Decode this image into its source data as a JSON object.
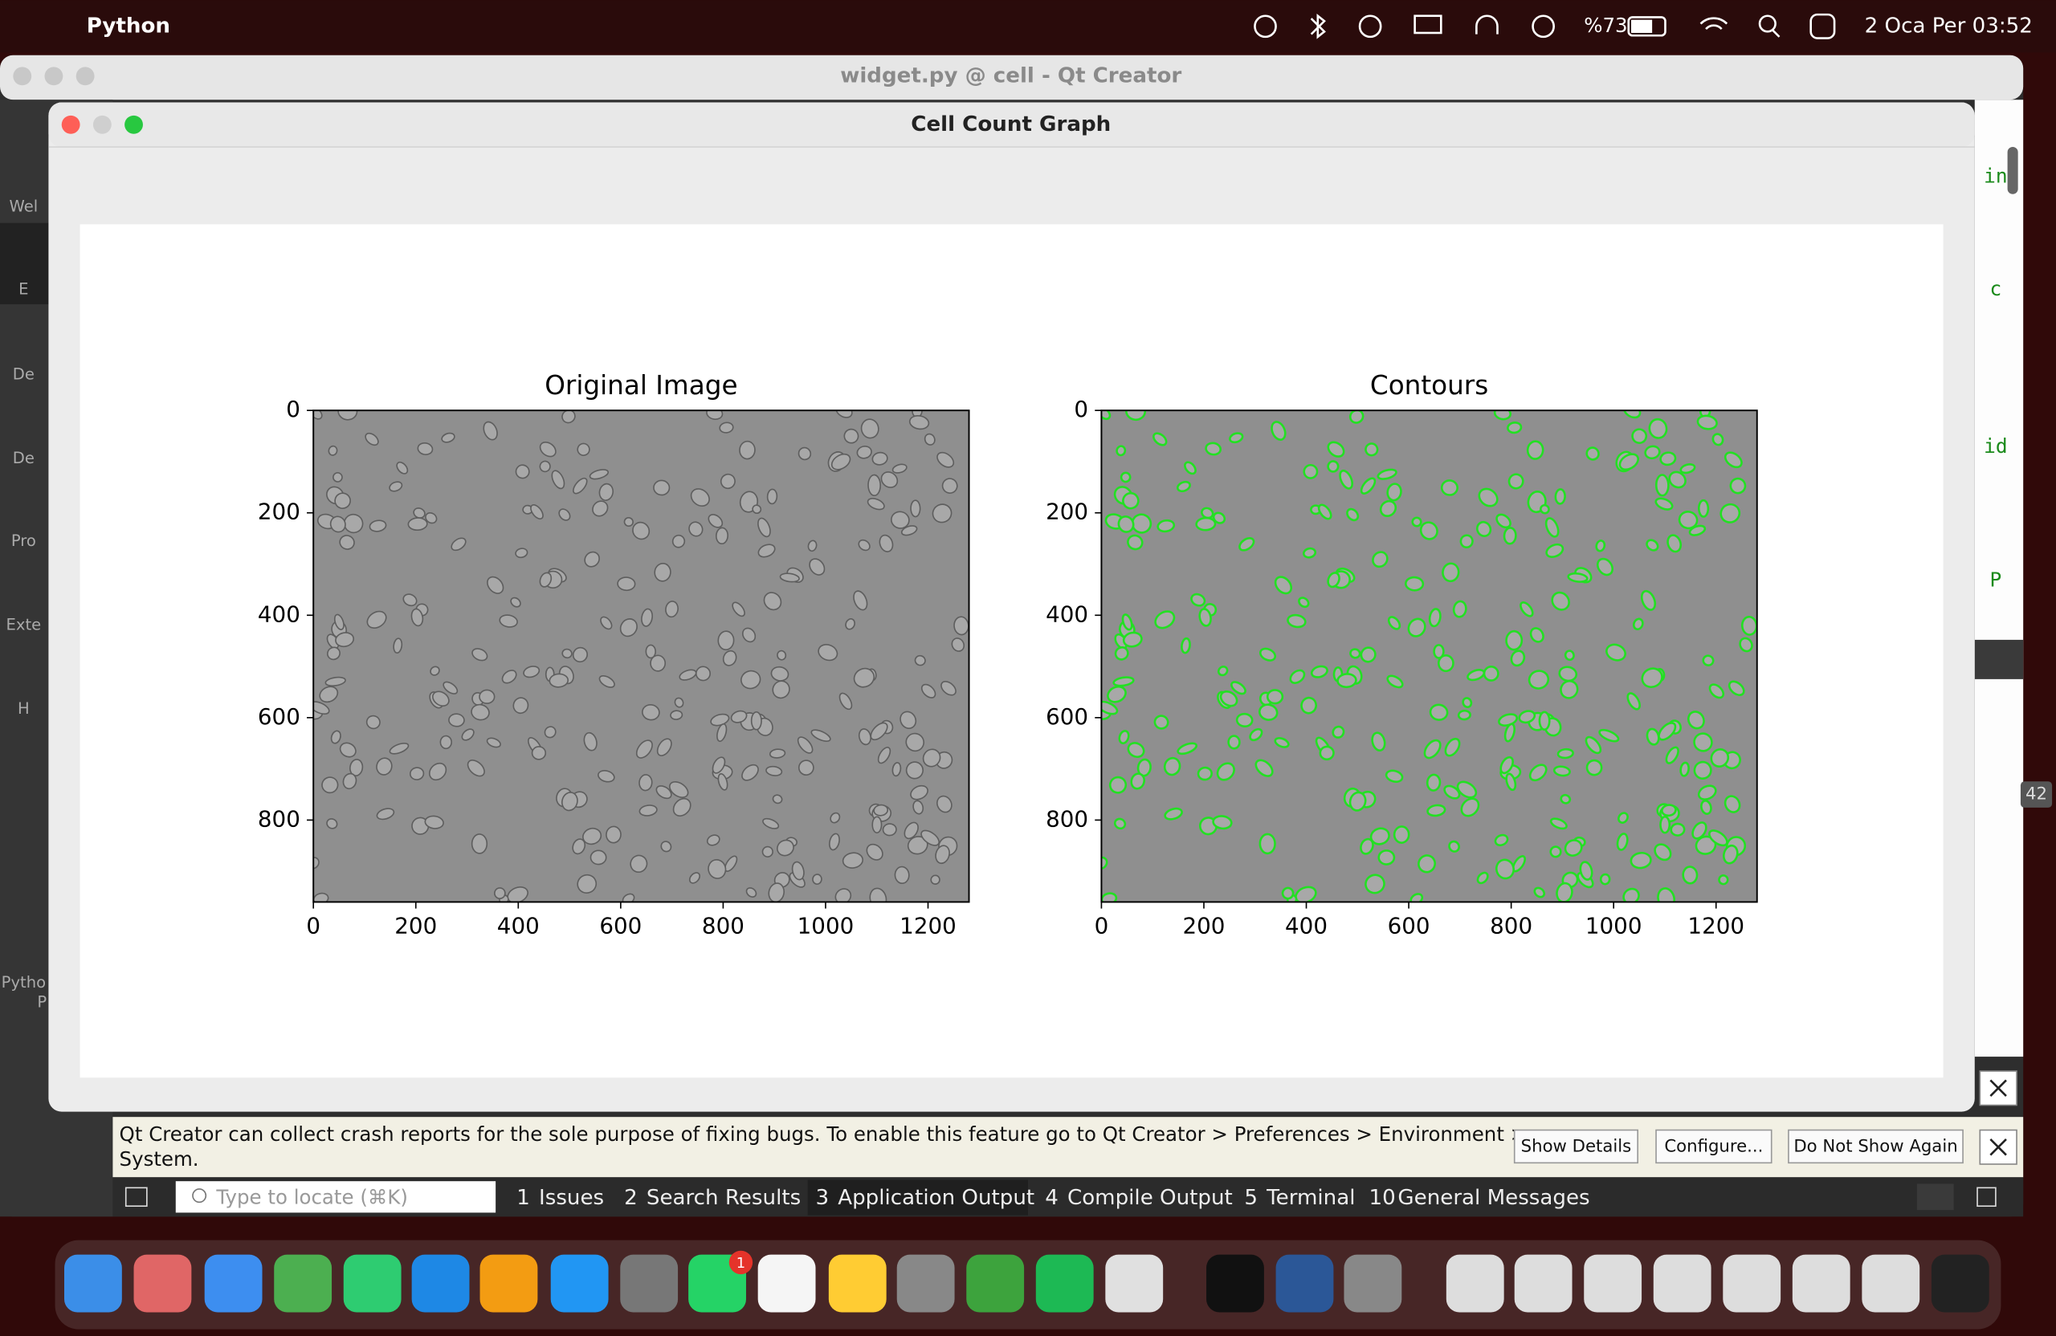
{
  "menubar": {
    "app": "Python",
    "battery": "%73",
    "clock": "2 Oca Per 03:52"
  },
  "editor_window": {
    "title": "widget.py @ cell - Qt Creator",
    "sidebar": [
      "Wel",
      "E",
      "De",
      "De",
      "Pro",
      "Exte",
      "H",
      "Pytho",
      "P"
    ],
    "code_fragments": [
      "in",
      "c",
      "id",
      "P"
    ],
    "line_badge": "42"
  },
  "dialog": {
    "title": "Cell Count Graph",
    "figure": {
      "axes": [
        {
          "title": "Original Image",
          "xlim": [
            0,
            1280
          ],
          "ylim": [
            960,
            0
          ],
          "xticks": [
            0,
            200,
            400,
            600,
            800,
            1000,
            1200
          ],
          "yticks": [
            0,
            200,
            400,
            600,
            800
          ]
        },
        {
          "title": "Contours",
          "xlim": [
            0,
            1280
          ],
          "ylim": [
            960,
            0
          ],
          "xticks": [
            0,
            200,
            400,
            600,
            800,
            1000,
            1200
          ],
          "yticks": [
            0,
            200,
            400,
            600,
            800
          ]
        }
      ]
    }
  },
  "notification": {
    "lines": [
      "Qt Creator can collect crash reports for the sole purpose of fixing bugs. To enable this feature go to Qt Creator > Preferences > Environment >",
      "System."
    ],
    "buttons": [
      "Show Details",
      "Configure...",
      "Do Not Show Again"
    ]
  },
  "output_pane": {
    "locate_placeholder": "Type to locate (⌘K)",
    "tabs": [
      {
        "number": "1",
        "name": "Issues"
      },
      {
        "number": "2",
        "name": "Search Results"
      },
      {
        "number": "3",
        "name": "Application Output"
      },
      {
        "number": "4",
        "name": "Compile Output"
      },
      {
        "number": "5",
        "name": "Terminal"
      },
      {
        "number": "10",
        "name": "General Messages"
      }
    ]
  },
  "dock": {
    "badge": 1
  }
}
